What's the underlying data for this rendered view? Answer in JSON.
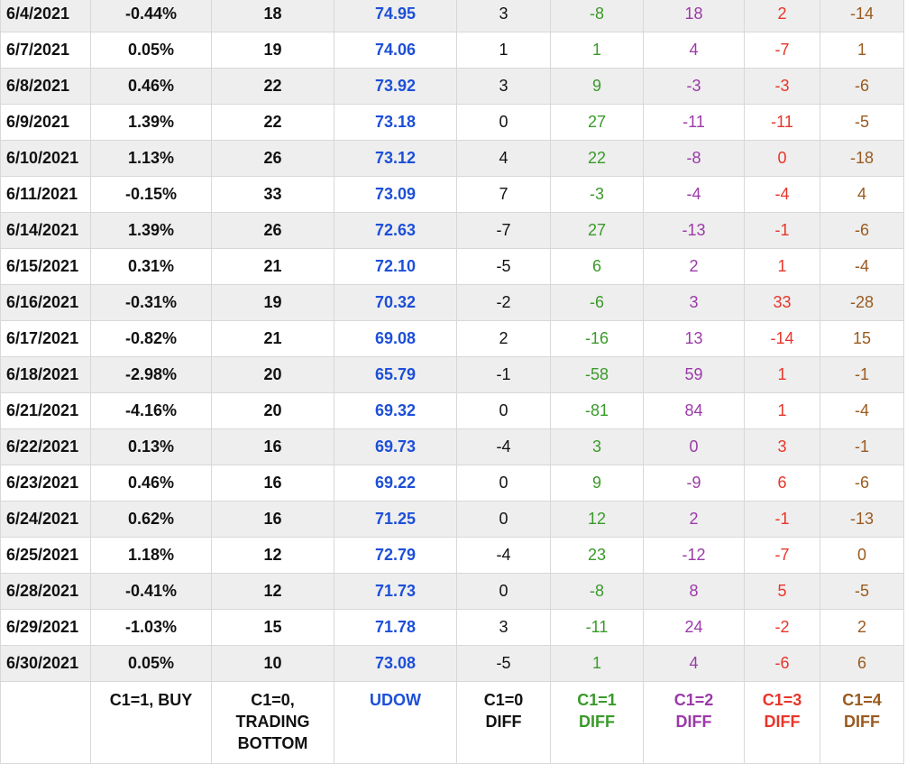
{
  "table": {
    "rows": [
      [
        "6/4/2021",
        "-0.44%",
        "18",
        "74.95",
        "3",
        "-8",
        "18",
        "2",
        "-14"
      ],
      [
        "6/7/2021",
        "0.05%",
        "19",
        "74.06",
        "1",
        "1",
        "4",
        "-7",
        "1"
      ],
      [
        "6/8/2021",
        "0.46%",
        "22",
        "73.92",
        "3",
        "9",
        "-3",
        "-3",
        "-6"
      ],
      [
        "6/9/2021",
        "1.39%",
        "22",
        "73.18",
        "0",
        "27",
        "-11",
        "-11",
        "-5"
      ],
      [
        "6/10/2021",
        "1.13%",
        "26",
        "73.12",
        "4",
        "22",
        "-8",
        "0",
        "-18"
      ],
      [
        "6/11/2021",
        "-0.15%",
        "33",
        "73.09",
        "7",
        "-3",
        "-4",
        "-4",
        "4"
      ],
      [
        "6/14/2021",
        "1.39%",
        "26",
        "72.63",
        "-7",
        "27",
        "-13",
        "-1",
        "-6"
      ],
      [
        "6/15/2021",
        "0.31%",
        "21",
        "72.10",
        "-5",
        "6",
        "2",
        "1",
        "-4"
      ],
      [
        "6/16/2021",
        "-0.31%",
        "19",
        "70.32",
        "-2",
        "-6",
        "3",
        "33",
        "-28"
      ],
      [
        "6/17/2021",
        "-0.82%",
        "21",
        "69.08",
        "2",
        "-16",
        "13",
        "-14",
        "15"
      ],
      [
        "6/18/2021",
        "-2.98%",
        "20",
        "65.79",
        "-1",
        "-58",
        "59",
        "1",
        "-1"
      ],
      [
        "6/21/2021",
        "-4.16%",
        "20",
        "69.32",
        "0",
        "-81",
        "84",
        "1",
        "-4"
      ],
      [
        "6/22/2021",
        "0.13%",
        "16",
        "69.73",
        "-4",
        "3",
        "0",
        "3",
        "-1"
      ],
      [
        "6/23/2021",
        "0.46%",
        "16",
        "69.22",
        "0",
        "9",
        "-9",
        "6",
        "-6"
      ],
      [
        "6/24/2021",
        "0.62%",
        "16",
        "71.25",
        "0",
        "12",
        "2",
        "-1",
        "-13"
      ],
      [
        "6/25/2021",
        "1.18%",
        "12",
        "72.79",
        "-4",
        "23",
        "-12",
        "-7",
        "0"
      ],
      [
        "6/28/2021",
        "-0.41%",
        "12",
        "71.73",
        "0",
        "-8",
        "8",
        "5",
        "-5"
      ],
      [
        "6/29/2021",
        "-1.03%",
        "15",
        "71.78",
        "3",
        "-11",
        "24",
        "-2",
        "2"
      ],
      [
        "6/30/2021",
        "0.05%",
        "10",
        "73.08",
        "-5",
        "1",
        "4",
        "-6",
        "6"
      ]
    ],
    "footer": [
      "C1=1, BUY",
      "C1=0,\nTRADING\nBOTTOM",
      "UDOW",
      "C1=0\nDIFF",
      "C1=1\nDIFF",
      "C1=2\nDIFF",
      "C1=3\nDIFF",
      "C1=4\nDIFF"
    ]
  }
}
